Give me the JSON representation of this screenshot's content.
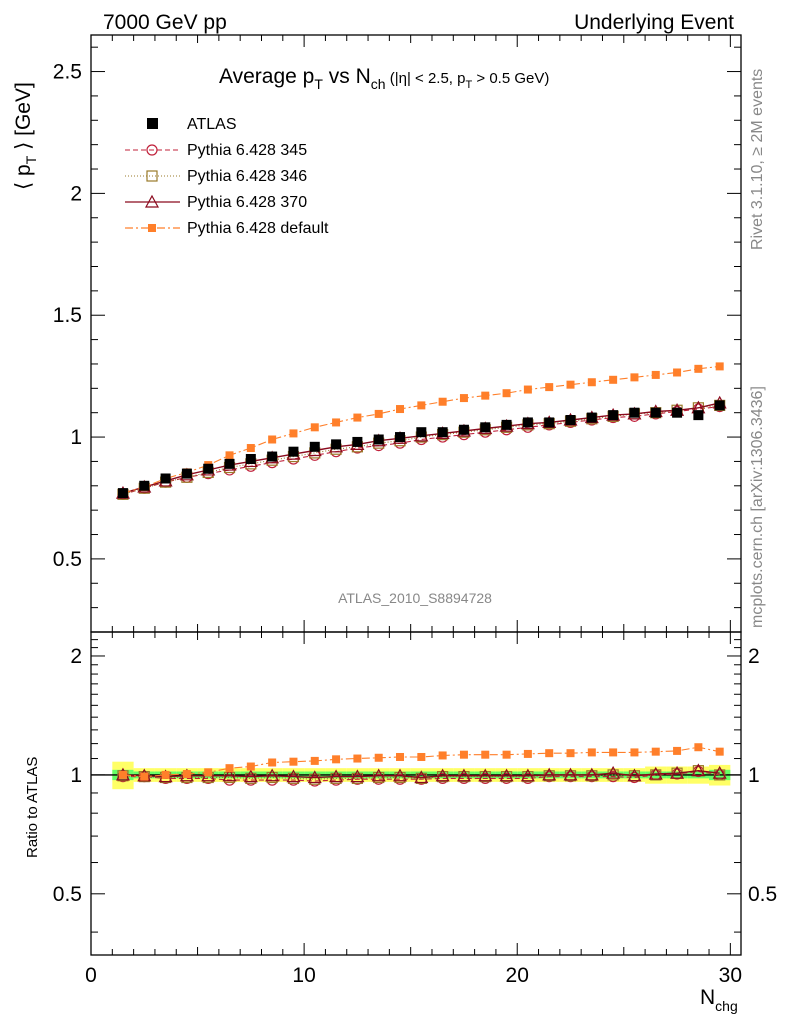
{
  "header": {
    "left": "7000 GeV pp",
    "right": "Underlying Event"
  },
  "side": {
    "rivet": "Rivet 3.1.10, ≥ 2M events",
    "mcplots": "mcplots.cern.ch [arXiv:1306.3436]"
  },
  "colors": {
    "atlas": "#000000",
    "p345": "#c0203a",
    "p346": "#9a7a2a",
    "p370": "#8b0a1e",
    "default": "#ff7f2a",
    "band_inner": "#66ff66",
    "band_outer": "#ffff66"
  },
  "chart_data": [
    {
      "type": "scatter",
      "title": "Average pT vs Nch (|η| < 2.5, pT > 0.5 GeV)",
      "analysis_label": "ATLAS_2010_S8894728",
      "xlabel": "Nchg",
      "ylabel": "⟨ pT ⟩ [GeV]",
      "xlim": [
        0,
        30.5
      ],
      "ylim": [
        0.2,
        2.65
      ],
      "xticks": [
        "0",
        "10",
        "20",
        "30"
      ],
      "yticks": [
        "0.5",
        "1",
        "1.5",
        "2",
        "2.5"
      ],
      "legend_position": "top-left",
      "x": [
        1.5,
        2.5,
        3.5,
        4.5,
        5.5,
        6.5,
        7.5,
        8.5,
        9.5,
        10.5,
        11.5,
        12.5,
        13.5,
        14.5,
        15.5,
        16.5,
        17.5,
        18.5,
        19.5,
        20.5,
        21.5,
        22.5,
        23.5,
        24.5,
        25.5,
        26.5,
        27.5,
        28.5,
        29.5
      ],
      "series": [
        {
          "name": "ATLAS",
          "key": "atlas",
          "values": [
            0.77,
            0.8,
            0.83,
            0.85,
            0.87,
            0.89,
            0.91,
            0.92,
            0.94,
            0.96,
            0.97,
            0.98,
            0.99,
            1.0,
            1.02,
            1.02,
            1.03,
            1.04,
            1.05,
            1.06,
            1.06,
            1.07,
            1.08,
            1.09,
            1.1,
            1.1,
            1.1,
            1.09,
            1.13
          ]
        },
        {
          "name": "Pythia 6.428 345",
          "key": "p345",
          "values": [
            0.765,
            0.79,
            0.815,
            0.835,
            0.85,
            0.865,
            0.88,
            0.895,
            0.91,
            0.925,
            0.94,
            0.955,
            0.965,
            0.975,
            0.99,
            1.0,
            1.01,
            1.02,
            1.03,
            1.04,
            1.05,
            1.06,
            1.07,
            1.08,
            1.085,
            1.095,
            1.105,
            1.115,
            1.125
          ]
        },
        {
          "name": "Pythia 6.428 346",
          "key": "p346",
          "values": [
            0.765,
            0.79,
            0.815,
            0.835,
            0.855,
            0.875,
            0.89,
            0.905,
            0.92,
            0.935,
            0.95,
            0.96,
            0.975,
            0.985,
            1.0,
            1.01,
            1.02,
            1.03,
            1.04,
            1.05,
            1.055,
            1.065,
            1.075,
            1.085,
            1.095,
            1.1,
            1.11,
            1.12,
            1.13
          ]
        },
        {
          "name": "Pythia 6.428 370",
          "key": "p370",
          "values": [
            0.77,
            0.795,
            0.82,
            0.845,
            0.865,
            0.885,
            0.9,
            0.915,
            0.93,
            0.945,
            0.96,
            0.97,
            0.985,
            0.995,
            1.005,
            1.015,
            1.025,
            1.035,
            1.045,
            1.055,
            1.06,
            1.07,
            1.08,
            1.09,
            1.095,
            1.105,
            1.11,
            1.12,
            1.14
          ]
        },
        {
          "name": "Pythia 6.428 default",
          "key": "default",
          "values": [
            0.77,
            0.795,
            0.83,
            0.855,
            0.885,
            0.925,
            0.955,
            0.99,
            1.015,
            1.04,
            1.06,
            1.08,
            1.095,
            1.115,
            1.13,
            1.145,
            1.16,
            1.17,
            1.18,
            1.195,
            1.205,
            1.215,
            1.225,
            1.235,
            1.245,
            1.255,
            1.265,
            1.28,
            1.29
          ]
        }
      ]
    },
    {
      "type": "scatter",
      "ylabel": "Ratio to ATLAS",
      "xlim": [
        0,
        30.5
      ],
      "ylim": [
        0.35,
        2.3
      ],
      "yticks": [
        "0.5",
        "1",
        "2"
      ],
      "x": [
        1.5,
        2.5,
        3.5,
        4.5,
        5.5,
        6.5,
        7.5,
        8.5,
        9.5,
        10.5,
        11.5,
        12.5,
        13.5,
        14.5,
        15.5,
        16.5,
        17.5,
        18.5,
        19.5,
        20.5,
        21.5,
        22.5,
        23.5,
        24.5,
        25.5,
        26.5,
        27.5,
        28.5,
        29.5
      ],
      "band_inner": [
        0.03,
        0.02,
        0.02,
        0.02,
        0.02,
        0.02,
        0.02,
        0.02,
        0.02,
        0.02,
        0.02,
        0.02,
        0.02,
        0.02,
        0.02,
        0.02,
        0.02,
        0.02,
        0.02,
        0.02,
        0.02,
        0.02,
        0.02,
        0.02,
        0.02,
        0.02,
        0.02,
        0.02,
        0.03
      ],
      "band_outer": [
        0.08,
        0.04,
        0.04,
        0.04,
        0.04,
        0.04,
        0.04,
        0.04,
        0.04,
        0.04,
        0.04,
        0.04,
        0.04,
        0.04,
        0.04,
        0.04,
        0.04,
        0.04,
        0.04,
        0.04,
        0.04,
        0.04,
        0.04,
        0.04,
        0.04,
        0.05,
        0.05,
        0.05,
        0.06
      ],
      "series": [
        {
          "name": "Pythia 6.428 345",
          "key": "p345",
          "values": [
            0.99,
            0.99,
            0.98,
            0.98,
            0.98,
            0.97,
            0.97,
            0.97,
            0.97,
            0.965,
            0.97,
            0.975,
            0.975,
            0.975,
            0.975,
            0.98,
            0.98,
            0.98,
            0.98,
            0.98,
            0.99,
            0.99,
            0.99,
            0.99,
            0.985,
            1.0,
            1.005,
            1.02,
            1.0
          ]
        },
        {
          "name": "Pythia 6.428 346",
          "key": "p346",
          "values": [
            0.995,
            0.99,
            0.985,
            0.985,
            0.985,
            0.985,
            0.98,
            0.985,
            0.98,
            0.975,
            0.98,
            0.98,
            0.985,
            0.985,
            0.98,
            0.99,
            0.99,
            0.99,
            0.99,
            0.99,
            0.995,
            0.995,
            0.995,
            1.0,
            0.995,
            1.0,
            1.01,
            1.025,
            1.0
          ]
        },
        {
          "name": "Pythia 6.428 370",
          "key": "p370",
          "values": [
            1.0,
            0.995,
            0.99,
            0.995,
            0.995,
            0.995,
            0.99,
            0.995,
            0.99,
            0.985,
            0.99,
            0.99,
            0.995,
            0.995,
            0.985,
            0.995,
            0.995,
            0.995,
            0.995,
            0.995,
            1.0,
            1.0,
            1.0,
            1.01,
            0.995,
            1.005,
            1.01,
            1.025,
            1.01
          ]
        },
        {
          "name": "Pythia 6.428 default",
          "key": "default",
          "values": [
            1.0,
            0.99,
            1.0,
            1.005,
            1.015,
            1.04,
            1.05,
            1.075,
            1.08,
            1.085,
            1.095,
            1.1,
            1.105,
            1.11,
            1.11,
            1.12,
            1.125,
            1.125,
            1.125,
            1.13,
            1.135,
            1.135,
            1.14,
            1.14,
            1.14,
            1.145,
            1.15,
            1.175,
            1.145
          ]
        }
      ]
    }
  ]
}
